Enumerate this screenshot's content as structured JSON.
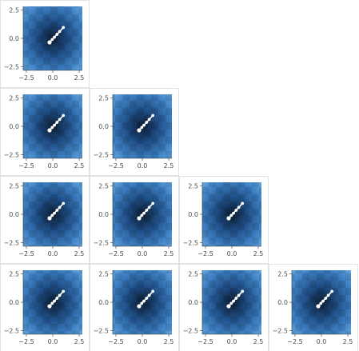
{
  "chart_data": {
    "type": "heatmap",
    "layout": "lower-triangular grid of panels, 4 rows x 4 columns",
    "rows": 4,
    "x_range": [
      -2.8,
      2.8
    ],
    "y_range": [
      -2.8,
      2.8
    ],
    "x_ticks": [
      -2.5,
      0.0,
      2.5
    ],
    "y_ticks": [
      -2.5,
      0.0,
      2.5
    ],
    "x_tick_labels": [
      "−2.5",
      "0.0",
      "2.5"
    ],
    "y_tick_labels": [
      "2.5",
      "0.0",
      "−2.5"
    ],
    "background_colormap": [
      "#0b1d33",
      "#1f4e86",
      "#3e82c6",
      "#6fb0e6"
    ],
    "path_color": "#ffffff",
    "path_points": [
      {
        "x": -0.3,
        "y": -0.35
      },
      {
        "x": -0.05,
        "y": -0.1
      },
      {
        "x": 0.15,
        "y": 0.1
      },
      {
        "x": 0.4,
        "y": 0.35
      },
      {
        "x": 0.65,
        "y": 0.6
      },
      {
        "x": 1.0,
        "y": 0.95
      }
    ]
  }
}
